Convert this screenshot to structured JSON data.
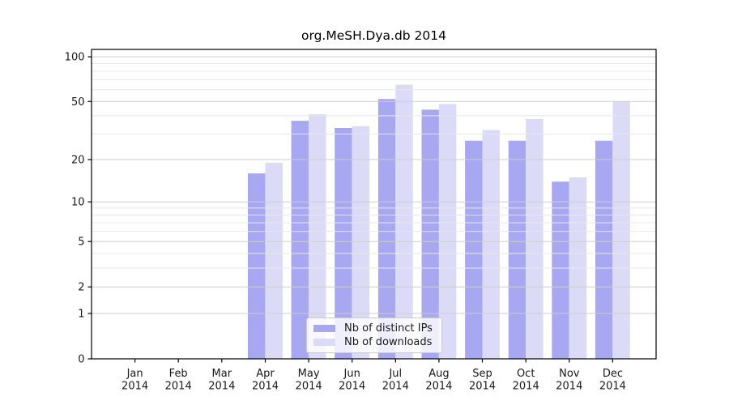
{
  "chart_data": {
    "type": "bar",
    "title": "org.MeSH.Dya.db 2014",
    "categories": [
      "Jan",
      "Feb",
      "Mar",
      "Apr",
      "May",
      "Jun",
      "Jul",
      "Aug",
      "Sep",
      "Oct",
      "Nov",
      "Dec"
    ],
    "year": "2014",
    "series": [
      {
        "name": "Nb of distinct IPs",
        "color": "#a8a8f2",
        "values": [
          0,
          0,
          0,
          16,
          37,
          33,
          52,
          44,
          27,
          27,
          14,
          27
        ]
      },
      {
        "name": "Nb of downloads",
        "color": "#dbdbf8",
        "values": [
          0,
          0,
          0,
          19,
          41,
          34,
          65,
          48,
          32,
          38,
          15,
          50
        ]
      }
    ],
    "yscale": "log1p",
    "yticks": [
      0,
      1,
      2,
      5,
      10,
      20,
      50,
      100
    ],
    "minor_yticks": [
      3,
      4,
      6,
      7,
      8,
      9,
      30,
      40,
      60,
      70,
      80,
      90
    ],
    "ylim": [
      0,
      112
    ],
    "xlabel": "",
    "ylabel": "",
    "grid": true,
    "legend_position": "lower center"
  },
  "colors": {
    "grid_major": "#cdcdcd",
    "grid_minor": "#e8e8e8",
    "axis": "#000000",
    "tick_text": "#1a1a1a"
  }
}
